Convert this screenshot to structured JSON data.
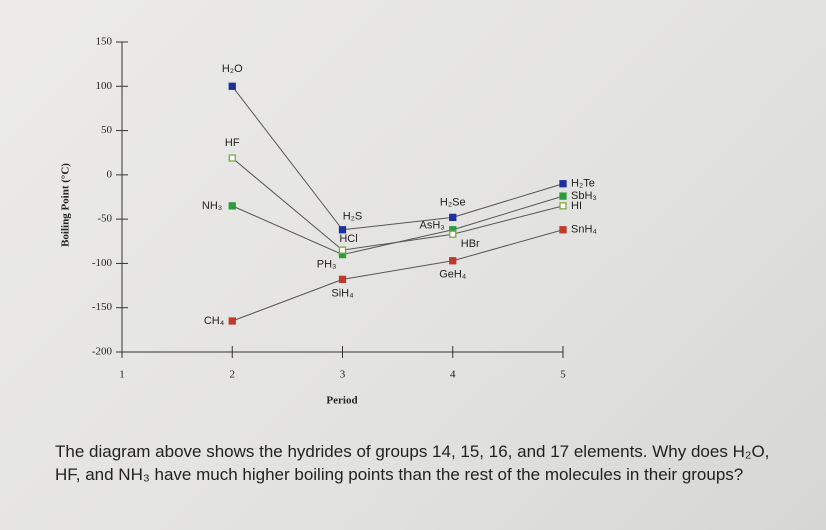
{
  "chart_data": {
    "type": "line",
    "y_label": "Boiling Point (°C)",
    "x_label": "Period",
    "xlim": [
      1,
      5
    ],
    "xticks": [
      1,
      2,
      3,
      4,
      5
    ],
    "ylim": [
      -200,
      150
    ],
    "yticks": [
      -200,
      -150,
      -100,
      -50,
      0,
      50,
      100,
      150
    ],
    "x": [
      2,
      3,
      4,
      5
    ],
    "series": [
      {
        "color": "#1f2f9e",
        "hollow": false,
        "values": [
          100,
          -62,
          -48,
          -10
        ],
        "labels": [
          "H₂O",
          "H₂S",
          "H₂Se",
          "H₂Te"
        ]
      },
      {
        "color": "#2e9b3e",
        "hollow": false,
        "values": [
          -35,
          -90,
          -62,
          -24
        ],
        "labels": [
          "NH₃",
          "PH₃",
          "AsH₃",
          "SbH₃"
        ]
      },
      {
        "color": "#7fa83a",
        "hollow": true,
        "values": [
          19,
          -85,
          -67,
          -35
        ],
        "labels": [
          "HF",
          "HCl",
          "HBr",
          "HI"
        ]
      },
      {
        "color": "#c0392b",
        "hollow": false,
        "values": [
          -165,
          -118,
          -97,
          -62
        ],
        "labels": [
          "CH₄",
          "SiH₄",
          "GeH₄",
          "SnH₄"
        ]
      }
    ]
  },
  "question": "The diagram above shows the hydrides of groups 14, 15, 16, and 17 elements. Why does H₂O, HF, and NH₃ have much higher boiling points than the rest of the molecules in their groups?"
}
